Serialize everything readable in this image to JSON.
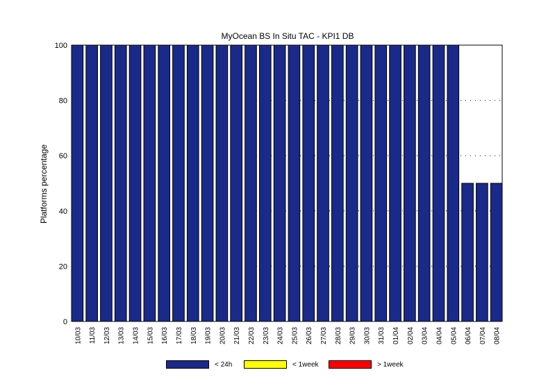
{
  "chart_data": {
    "type": "bar",
    "title": "MyOcean  BS In Situ TAC - KPI1  DB",
    "xlabel": "",
    "ylabel": "Platforms percentage",
    "ylim": [
      0,
      100
    ],
    "yticks": [
      0,
      20,
      40,
      60,
      80,
      100
    ],
    "grid": true,
    "grid_style": "dotted",
    "stacked": true,
    "legend_position": "bottom",
    "categories": [
      "10/03",
      "11/03",
      "12/03",
      "13/03",
      "14/03",
      "15/03",
      "16/03",
      "17/03",
      "18/03",
      "19/03",
      "20/03",
      "21/03",
      "22/03",
      "23/03",
      "24/03",
      "25/03",
      "26/03",
      "27/03",
      "28/03",
      "29/03",
      "30/03",
      "31/03",
      "01/04",
      "02/04",
      "03/04",
      "04/04",
      "05/04",
      "06/04",
      "07/04",
      "08/04"
    ],
    "series": [
      {
        "name": "< 24h",
        "color": "#1a2a8a",
        "values": [
          100,
          100,
          100,
          100,
          100,
          100,
          100,
          100,
          100,
          100,
          100,
          100,
          100,
          100,
          100,
          100,
          100,
          100,
          100,
          100,
          100,
          100,
          100,
          100,
          100,
          100,
          100,
          50,
          50,
          50
        ]
      },
      {
        "name": "< 1week",
        "color": "#ffff00",
        "values": [
          0,
          0,
          0,
          0,
          0,
          0,
          0,
          0,
          0,
          0,
          0,
          0,
          0,
          0,
          0,
          0,
          0,
          0,
          0,
          0,
          0,
          0,
          0,
          0,
          0,
          0,
          0,
          0,
          0,
          0
        ]
      },
      {
        "name": "> 1week",
        "color": "#ff0000",
        "values": [
          0,
          0,
          0,
          0,
          0,
          0,
          0,
          0,
          0,
          0,
          0,
          0,
          0,
          0,
          0,
          0,
          0,
          0,
          0,
          0,
          0,
          0,
          0,
          0,
          0,
          0,
          0,
          0,
          0,
          0
        ]
      }
    ]
  }
}
